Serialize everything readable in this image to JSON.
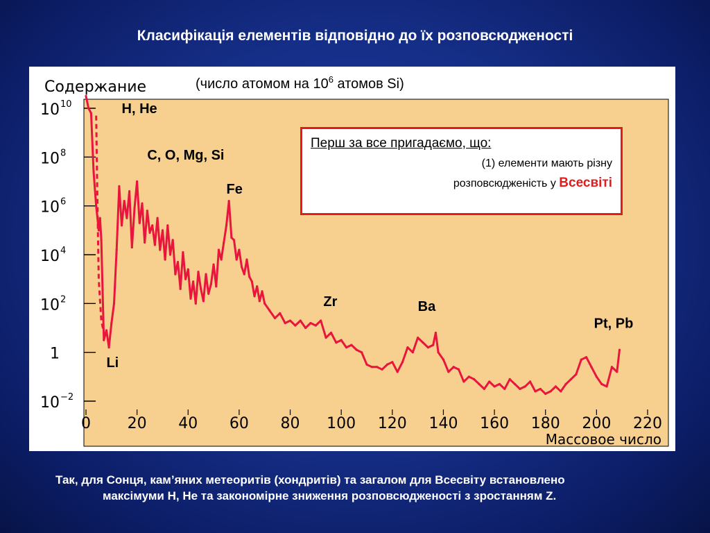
{
  "slide": {
    "title": "Класифікація елементів відповідно до їх розповсюдженості",
    "note_line1": "Так, для Сонця, кам’яних метеоритів (хондритів) та загалом для Всесвіту встановлено",
    "note_line2": "максімуми H, He та закономірне зниження розповсюдженості з зростанням Z."
  },
  "callout": {
    "heading": "Перш за все пригадаємо, що:",
    "line1": "(1) елементи мають різну",
    "line2": "розповсюдженість у",
    "accent": "Всесвіті",
    "border_color": "#e21b1b"
  },
  "colors": {
    "plot_bg": "#f7cf8f",
    "curve": "#e8153c"
  },
  "chart_data": {
    "type": "line",
    "title": "",
    "ylabel": "Содержание",
    "ylabel_note_prefix": "(число атомом на 10",
    "ylabel_note_sup": "6",
    "ylabel_note_suffix": " атомов Si)",
    "xlabel": "Массовое число",
    "xlim": [
      0,
      220
    ],
    "ylim_log10": [
      -2,
      10.5
    ],
    "y_scale": "log",
    "x_ticks": [
      "0",
      "20",
      "40",
      "60",
      "80",
      "100",
      "120",
      "140",
      "160",
      "180",
      "200",
      "220"
    ],
    "y_ticks": [
      {
        "log": 10,
        "base": "10",
        "exp": "10"
      },
      {
        "log": 8,
        "base": "10",
        "exp": "8"
      },
      {
        "log": 6,
        "base": "10",
        "exp": "6"
      },
      {
        "log": 4,
        "base": "10",
        "exp": "4"
      },
      {
        "log": 2,
        "base": "10",
        "exp": "2"
      },
      {
        "log": 0,
        "base": "1",
        "exp": ""
      },
      {
        "log": -2,
        "base": "10",
        "exp": "−2"
      }
    ],
    "grid": false,
    "annotations": [
      {
        "text": "H, He",
        "x": 14,
        "log_y": 9.8
      },
      {
        "text": "C, O, Mg, Si",
        "x": 24,
        "log_y": 7.9
      },
      {
        "text": "Fe",
        "x": 55,
        "log_y": 6.5
      },
      {
        "text": "Zr",
        "x": 93,
        "log_y": 1.9
      },
      {
        "text": "Ba",
        "x": 130,
        "log_y": 1.7
      },
      {
        "text": "Pt, Pb",
        "x": 199,
        "log_y": 1.0
      },
      {
        "text": "Li",
        "x": 8,
        "log_y": -0.6
      }
    ],
    "series_dashed": {
      "note": "Li–Be–B gap (dashed)",
      "x": [
        4,
        4.5,
        5,
        6,
        7
      ],
      "log_y": [
        9.7,
        6.0,
        3.0,
        1.3,
        0.8
      ]
    },
    "series": [
      {
        "x": [
          0,
          1,
          2,
          3,
          4,
          5,
          5.5,
          6,
          7,
          8,
          9,
          10,
          11,
          12,
          13,
          14,
          15,
          16,
          17,
          18,
          19,
          20,
          21,
          22,
          23,
          24,
          25,
          26,
          27,
          28,
          29,
          30,
          31,
          32,
          33,
          34,
          35,
          36,
          37,
          38,
          39,
          40,
          41,
          42,
          43,
          44,
          45,
          46,
          47,
          48,
          49,
          50,
          51,
          52,
          53,
          54,
          55,
          56,
          57,
          58,
          59,
          60,
          61,
          62,
          63,
          64,
          65,
          66,
          67,
          68,
          69,
          70,
          72,
          74,
          76,
          78,
          80,
          82,
          84,
          86,
          88,
          90,
          92,
          94,
          96,
          98,
          100,
          102,
          104,
          106,
          108,
          110,
          112,
          114,
          116,
          118,
          120,
          122,
          124,
          126,
          128,
          130,
          132,
          134,
          136,
          137,
          138,
          140,
          142,
          144,
          146,
          148,
          150,
          152,
          154,
          156,
          158,
          160,
          162,
          164,
          166,
          168,
          170,
          172,
          174,
          176,
          178,
          180,
          182,
          184,
          186,
          188,
          190,
          192,
          194,
          196,
          198,
          200,
          202,
          204,
          206,
          208,
          209
        ],
        "log_y": [
          10.5,
          10.0,
          9.8,
          7.4,
          6.0,
          5.0,
          5.5,
          4.6,
          0.5,
          0.9,
          0.2,
          1.2,
          2.0,
          4.2,
          6.8,
          5.2,
          6.2,
          5.5,
          6.6,
          4.3,
          5.9,
          7.0,
          5.3,
          6.1,
          4.5,
          5.8,
          4.9,
          5.2,
          4.4,
          5.5,
          4.2,
          5.0,
          3.8,
          5.2,
          4.0,
          4.6,
          3.2,
          3.7,
          2.6,
          4.1,
          3.0,
          3.4,
          2.2,
          2.9,
          2.0,
          3.3,
          2.6,
          2.1,
          3.2,
          2.4,
          2.8,
          3.6,
          2.7,
          4.2,
          3.8,
          4.5,
          5.2,
          6.2,
          4.7,
          4.6,
          3.8,
          4.2,
          3.5,
          3.2,
          3.8,
          3.1,
          2.9,
          2.3,
          2.7,
          2.1,
          2.5,
          2.0,
          1.7,
          1.4,
          1.6,
          1.2,
          1.3,
          1.1,
          1.3,
          1.0,
          1.2,
          1.1,
          1.3,
          0.6,
          0.8,
          0.4,
          0.5,
          0.2,
          0.3,
          0.1,
          0.0,
          -0.5,
          -0.6,
          -0.6,
          -0.7,
          -0.5,
          -0.4,
          -0.8,
          -0.4,
          0.2,
          0.0,
          0.6,
          0.4,
          0.2,
          0.3,
          0.8,
          0.0,
          -0.3,
          -0.8,
          -0.6,
          -0.7,
          -1.2,
          -1.0,
          -1.1,
          -1.3,
          -1.5,
          -1.2,
          -1.4,
          -1.3,
          -1.5,
          -1.1,
          -1.3,
          -1.5,
          -1.4,
          -1.2,
          -1.6,
          -1.5,
          -1.7,
          -1.6,
          -1.4,
          -1.6,
          -1.3,
          -1.1,
          -0.9,
          -0.3,
          -0.2,
          -0.6,
          -1.0,
          -1.3,
          -1.4,
          -0.6,
          -0.8,
          0.1,
          -0.9
        ]
      }
    ]
  }
}
